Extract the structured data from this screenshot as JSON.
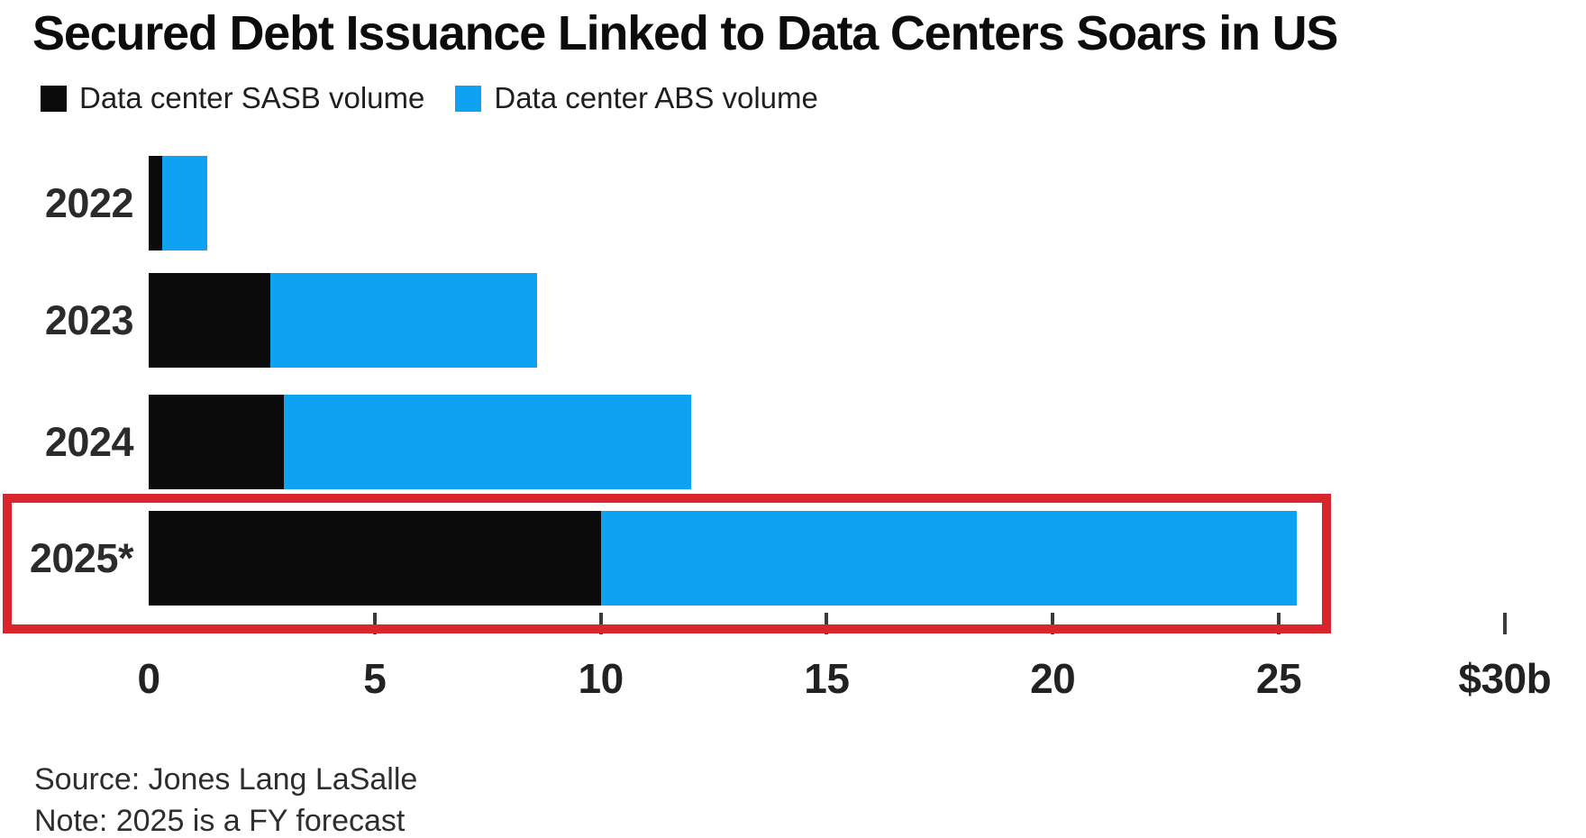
{
  "title": "Secured Debt Issuance Linked to Data Centers Soars in US",
  "legend": {
    "items": [
      {
        "label": "Data center SASB volume",
        "color": "#0b0b0b"
      },
      {
        "label": "Data center ABS volume",
        "color": "#0fa2f2"
      }
    ]
  },
  "chart_data": {
    "type": "bar",
    "orientation": "horizontal",
    "stacked": true,
    "title": "Secured Debt Issuance Linked to Data Centers Soars in US",
    "categories": [
      "2022",
      "2023",
      "2024",
      "2025*"
    ],
    "series": [
      {
        "name": "Data center SASB volume",
        "color": "#0b0b0b",
        "values": [
          0.3,
          2.7,
          3.0,
          10.0
        ]
      },
      {
        "name": "Data center ABS volume",
        "color": "#0fa2f2",
        "values": [
          1.0,
          5.9,
          9.0,
          15.4
        ]
      }
    ],
    "totals": [
      1.3,
      8.6,
      12.0,
      25.4
    ],
    "xlim": [
      0,
      30
    ],
    "x_unit": "$ billions",
    "grid": false,
    "legend_position": "top-left",
    "highlight": {
      "category": "2025*",
      "style": "red-outline-box",
      "color": "#d8262c"
    }
  },
  "axis": {
    "labels": [
      {
        "value": 0,
        "label": "0",
        "tick": false
      },
      {
        "value": 5,
        "label": "5",
        "tick": true
      },
      {
        "value": 10,
        "label": "10",
        "tick": true
      },
      {
        "value": 15,
        "label": "15",
        "tick": true
      },
      {
        "value": 20,
        "label": "20",
        "tick": true
      },
      {
        "value": 25,
        "label": "25",
        "tick": true
      },
      {
        "value": 30,
        "label": "$30b",
        "tick": true
      }
    ]
  },
  "footer": {
    "source": "Source: Jones Lang LaSalle",
    "note": "Note: 2025 is a FY forecast"
  }
}
